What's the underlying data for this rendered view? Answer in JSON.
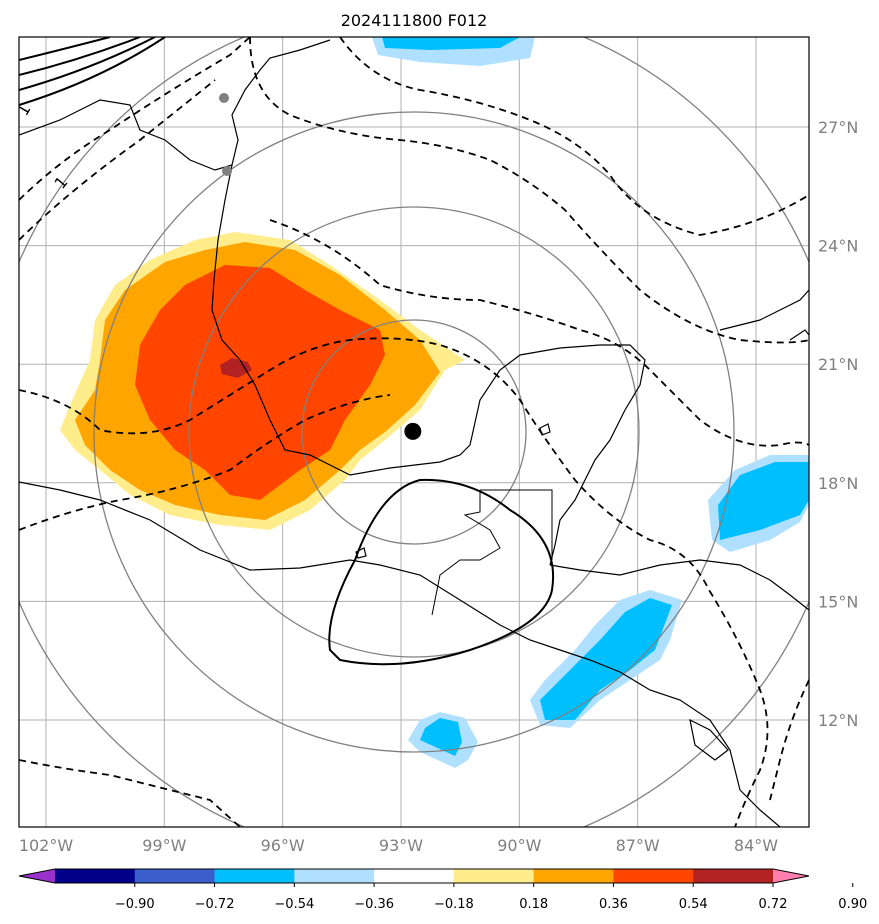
{
  "title": "2024111800 F012",
  "axes": {
    "lon_labels": [
      "102°W",
      "99°W",
      "96°W",
      "93°W",
      "90°W",
      "87°W",
      "84°W"
    ],
    "lat_labels": [
      "27°N",
      "24°N",
      "21°N",
      "18°N",
      "15°N",
      "12°N"
    ],
    "lon_values": [
      -102,
      -99,
      -96,
      -93,
      -90,
      -87,
      -84
    ],
    "lat_values": [
      27,
      24,
      21,
      18,
      15,
      12
    ]
  },
  "storm_center": {
    "lon": -92.7,
    "lat": 19.3
  },
  "contour_label": "1",
  "colorbar": {
    "tick_labels": [
      "−0.90",
      "−0.72",
      "−0.54",
      "−0.36",
      "−0.18",
      "0.18",
      "0.36",
      "0.54",
      "0.72",
      "0.90"
    ],
    "colors": [
      "#9932cc",
      "#00008b",
      "#3a5fcd",
      "#00bfff",
      "#b0e0ff",
      "#ffffff",
      "#ffec8b",
      "#ffa500",
      "#ff4500",
      "#b22222",
      "#ff7fb0"
    ]
  }
}
